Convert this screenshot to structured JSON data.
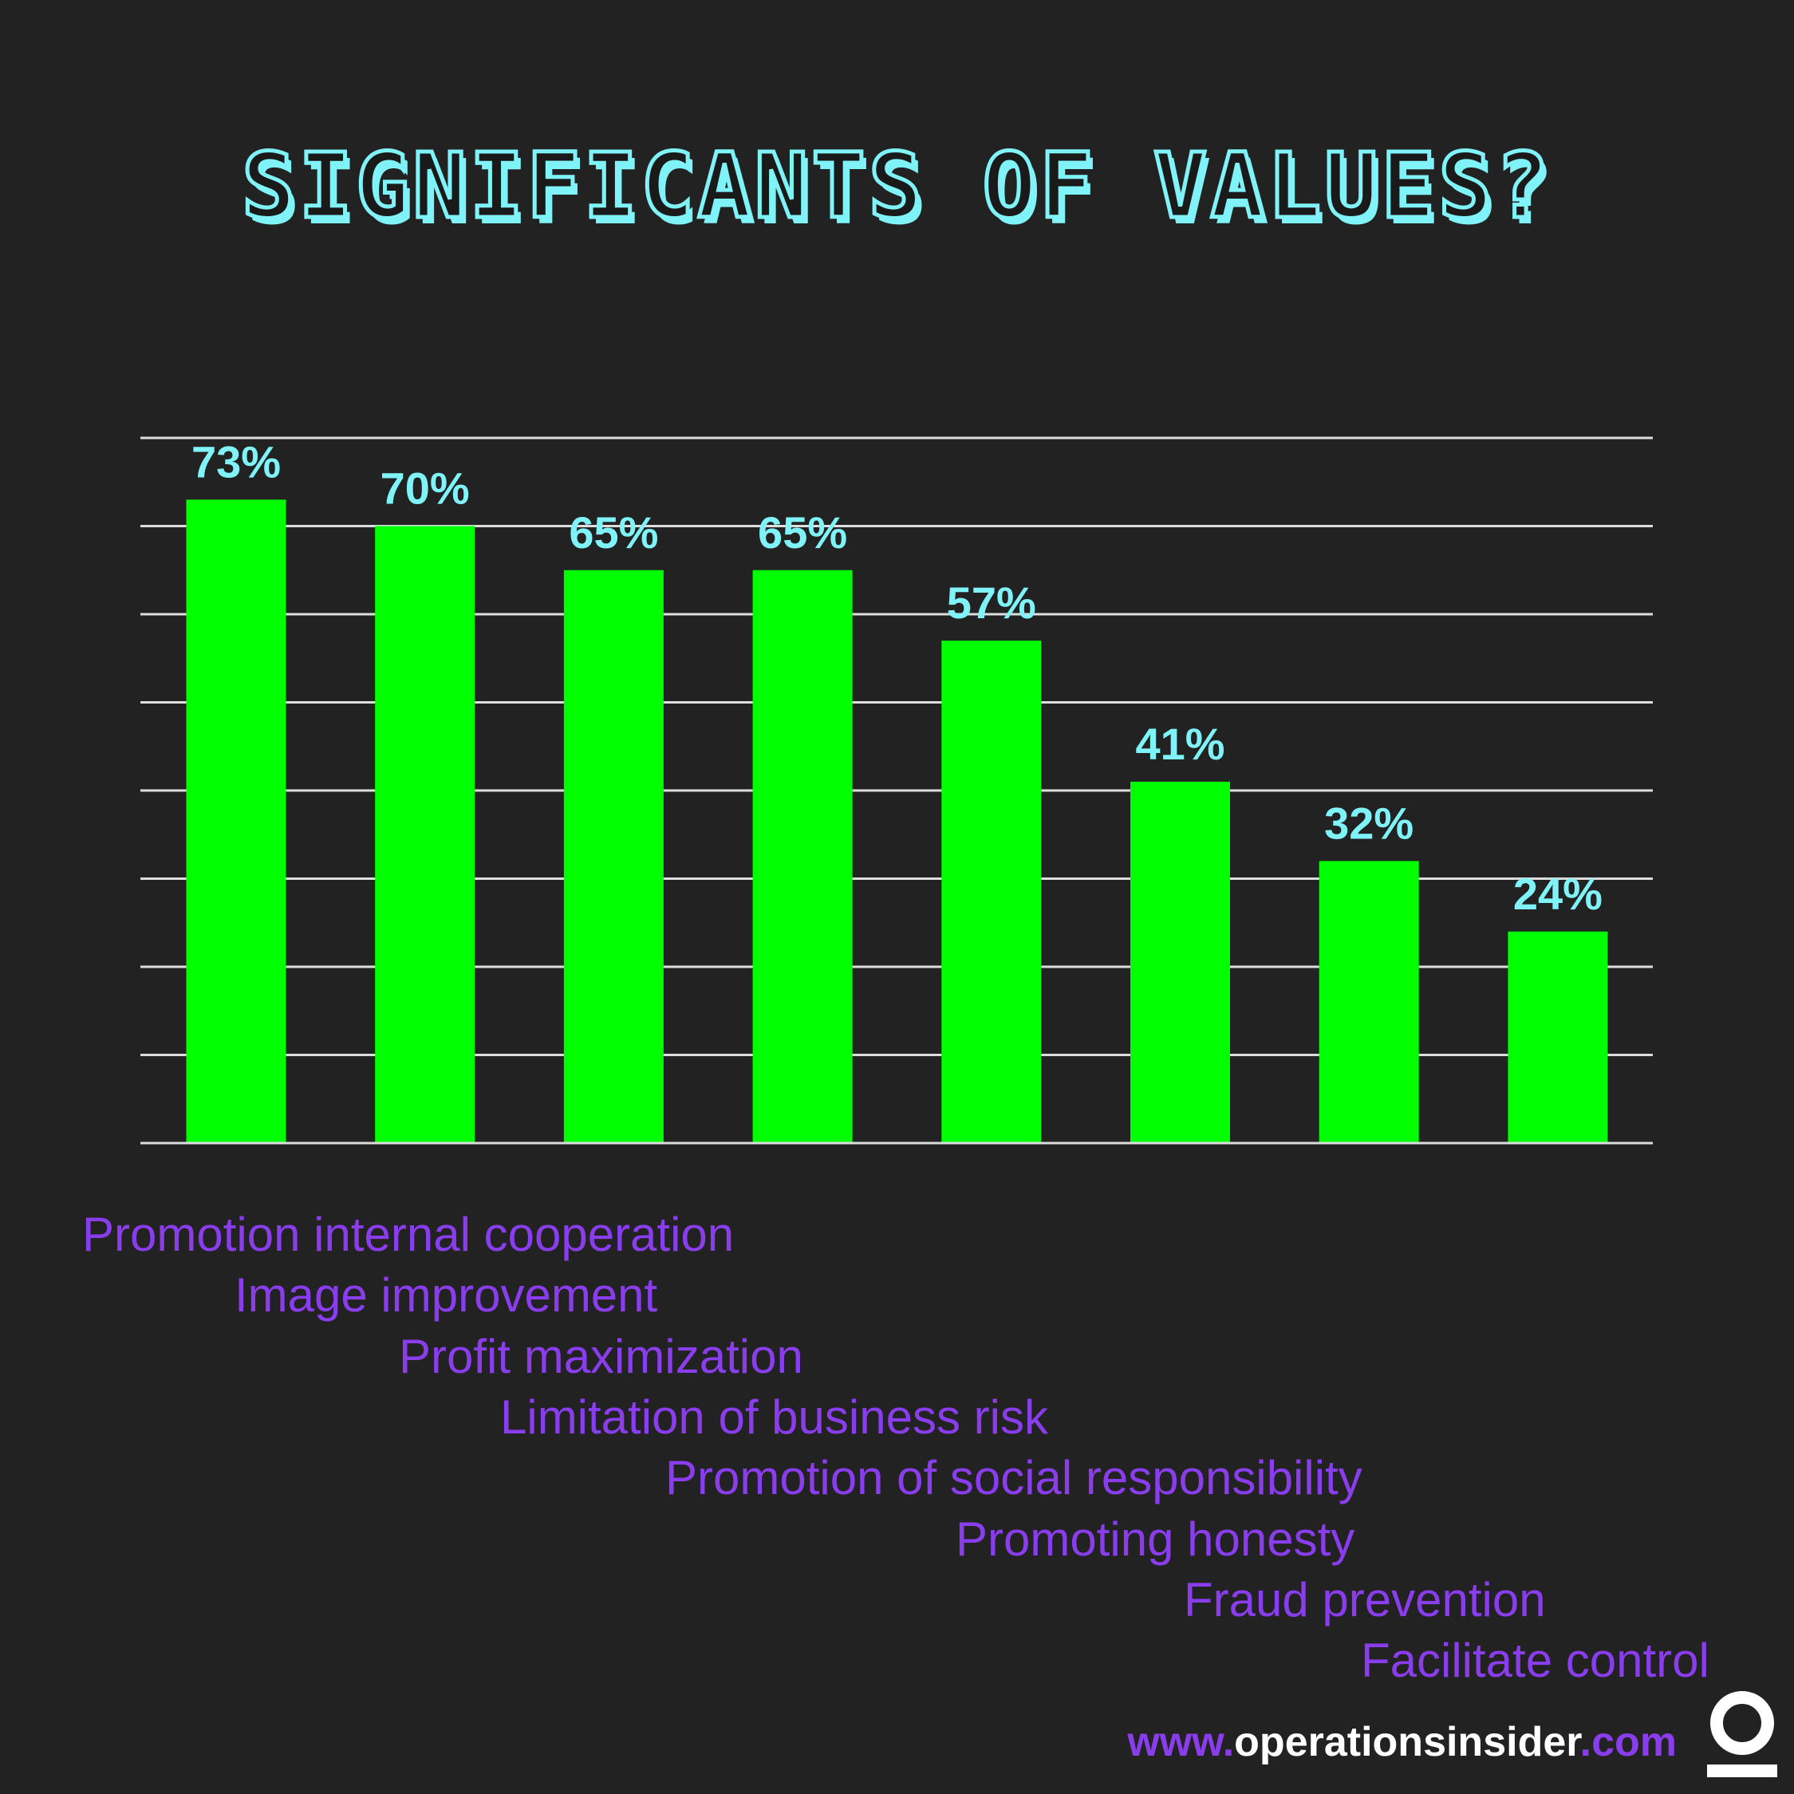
{
  "title": "SIGNIFICANTS OF VALUES?",
  "chart_data": {
    "type": "bar",
    "categories": [
      "Promotion internal cooperation",
      "Image improvement",
      "Profit maximization",
      "Limitation of business risk",
      "Promotion of social responsibility",
      "Promoting honesty",
      "Fraud prevention",
      "Facilitate control"
    ],
    "values": [
      73,
      70,
      65,
      65,
      57,
      41,
      32,
      24
    ],
    "data_labels": [
      "73%",
      "70%",
      "65%",
      "65%",
      "57%",
      "41%",
      "32%",
      "24%"
    ],
    "ylim": [
      0,
      80
    ],
    "grid": true,
    "bar_color": "#00ff00",
    "label_color": "#7ff3f8",
    "category_color": "#8a3dec"
  },
  "footer": {
    "prefix": "www.",
    "domain": "operationsinsider",
    "suffix": ".com"
  },
  "colors": {
    "background": "#222222",
    "title": "#7ff3f8",
    "grid": "#dddddd"
  }
}
